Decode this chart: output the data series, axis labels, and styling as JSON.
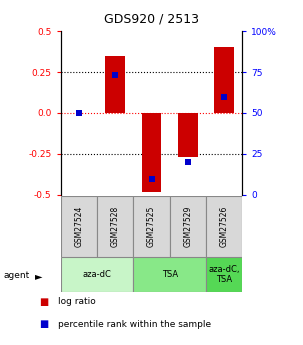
{
  "title": "GDS920 / 2513",
  "samples": [
    "GSM27524",
    "GSM27528",
    "GSM27525",
    "GSM27529",
    "GSM27526"
  ],
  "log_ratios": [
    0.0,
    0.35,
    -0.48,
    -0.27,
    0.4
  ],
  "percentile_ranks": [
    0.5,
    0.73,
    0.1,
    0.2,
    0.6
  ],
  "groups": [
    {
      "label": "aza-dC",
      "indices": [
        0,
        1
      ],
      "color": "#c8f5c8"
    },
    {
      "label": "TSA",
      "indices": [
        2,
        3
      ],
      "color": "#88e888"
    },
    {
      "label": "aza-dC,\nTSA",
      "indices": [
        4
      ],
      "color": "#55d855"
    }
  ],
  "ylim": [
    -0.5,
    0.5
  ],
  "yticks_left": [
    -0.5,
    -0.25,
    0.0,
    0.25,
    0.5
  ],
  "bar_color": "#cc0000",
  "dot_color": "#0000cc",
  "bar_width": 0.55,
  "dot_size": 25,
  "legend_items": [
    {
      "label": "log ratio",
      "color": "#cc0000"
    },
    {
      "label": "percentile rank within the sample",
      "color": "#0000cc"
    }
  ]
}
